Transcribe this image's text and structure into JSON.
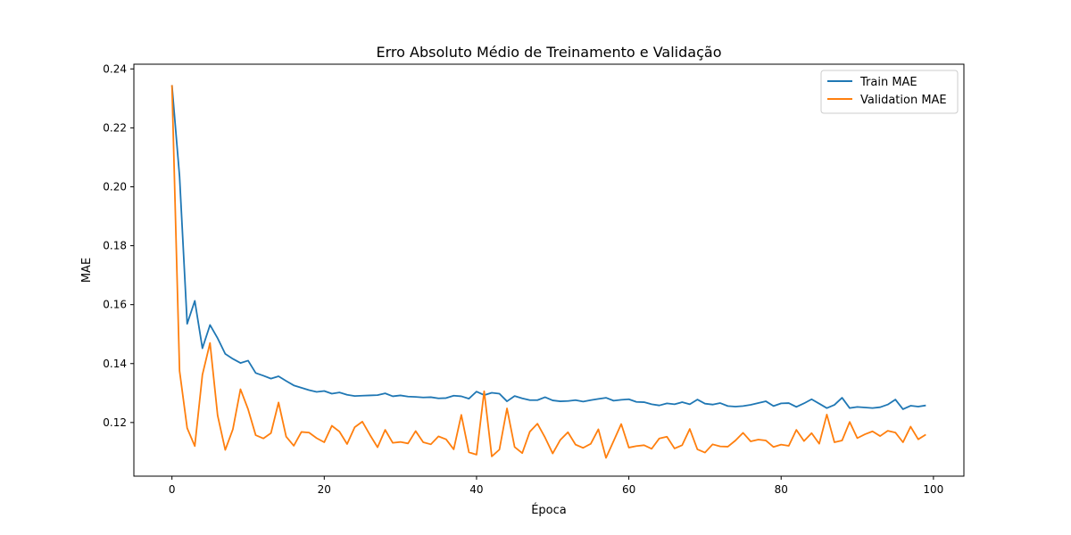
{
  "chart_data": {
    "type": "line",
    "title": "Erro Absoluto Médio de Treinamento e Validação",
    "xlabel": "Época",
    "ylabel": "MAE",
    "xlim": [
      -5,
      104
    ],
    "ylim": [
      0.1018,
      0.2416
    ],
    "xticks": [
      0,
      20,
      40,
      60,
      80,
      100
    ],
    "yticks": [
      0.12,
      0.14,
      0.16,
      0.18,
      0.2,
      0.22,
      0.24
    ],
    "ytick_labels": [
      "0.12",
      "0.14",
      "0.16",
      "0.18",
      "0.20",
      "0.22",
      "0.24"
    ],
    "grid": false,
    "legend_position": "upper right",
    "series": [
      {
        "name": "Train MAE",
        "color": "#1f77b4",
        "values": [
          0.2345,
          0.2035,
          0.1535,
          0.1613,
          0.1452,
          0.1531,
          0.1486,
          0.1433,
          0.1416,
          0.1402,
          0.141,
          0.1368,
          0.1359,
          0.1349,
          0.1357,
          0.1341,
          0.1326,
          0.1318,
          0.131,
          0.1304,
          0.1307,
          0.1298,
          0.1302,
          0.1294,
          0.129,
          0.1291,
          0.1292,
          0.1293,
          0.1299,
          0.1289,
          0.1292,
          0.1288,
          0.1287,
          0.1285,
          0.1286,
          0.1282,
          0.1283,
          0.1291,
          0.1289,
          0.1281,
          0.1305,
          0.1293,
          0.1301,
          0.1298,
          0.1272,
          0.129,
          0.1282,
          0.1276,
          0.1276,
          0.1286,
          0.1275,
          0.1272,
          0.1273,
          0.1276,
          0.1271,
          0.1276,
          0.128,
          0.1284,
          0.1274,
          0.1277,
          0.1279,
          0.127,
          0.1269,
          0.1262,
          0.1258,
          0.1265,
          0.1262,
          0.1269,
          0.1262,
          0.1278,
          0.1264,
          0.1261,
          0.1266,
          0.1256,
          0.1254,
          0.1256,
          0.126,
          0.1266,
          0.1272,
          0.1256,
          0.1265,
          0.1266,
          0.1253,
          0.1265,
          0.1279,
          0.1264,
          0.1249,
          0.126,
          0.1284,
          0.1249,
          0.1253,
          0.1251,
          0.1249,
          0.1252,
          0.1261,
          0.1278,
          0.1245,
          0.1257,
          0.1254,
          0.1258
        ]
      },
      {
        "name": "Validation MAE",
        "color": "#ff7f0e",
        "values": [
          0.2345,
          0.1375,
          0.1181,
          0.112,
          0.1362,
          0.147,
          0.1224,
          0.1107,
          0.1177,
          0.1313,
          0.1245,
          0.1157,
          0.1146,
          0.1164,
          0.1268,
          0.1152,
          0.1121,
          0.1168,
          0.1166,
          0.1147,
          0.1133,
          0.1189,
          0.1169,
          0.1127,
          0.1184,
          0.1203,
          0.1158,
          0.1116,
          0.1175,
          0.1131,
          0.1134,
          0.1129,
          0.1171,
          0.1133,
          0.1126,
          0.1153,
          0.1143,
          0.1109,
          0.1226,
          0.1099,
          0.1091,
          0.1306,
          0.1085,
          0.1108,
          0.1248,
          0.1117,
          0.1096,
          0.1169,
          0.1196,
          0.1149,
          0.1095,
          0.1141,
          0.1167,
          0.1125,
          0.1114,
          0.1128,
          0.1177,
          0.108,
          0.1137,
          0.1195,
          0.1115,
          0.112,
          0.1123,
          0.1111,
          0.1146,
          0.1152,
          0.1112,
          0.1123,
          0.1178,
          0.1109,
          0.1098,
          0.1126,
          0.1119,
          0.1118,
          0.1139,
          0.1165,
          0.1136,
          0.1142,
          0.1139,
          0.1117,
          0.1125,
          0.1121,
          0.1175,
          0.1137,
          0.1164,
          0.1128,
          0.1227,
          0.1133,
          0.1139,
          0.1202,
          0.1147,
          0.116,
          0.117,
          0.1154,
          0.1172,
          0.1166,
          0.1133,
          0.1186,
          0.1143,
          0.1159
        ]
      }
    ]
  }
}
